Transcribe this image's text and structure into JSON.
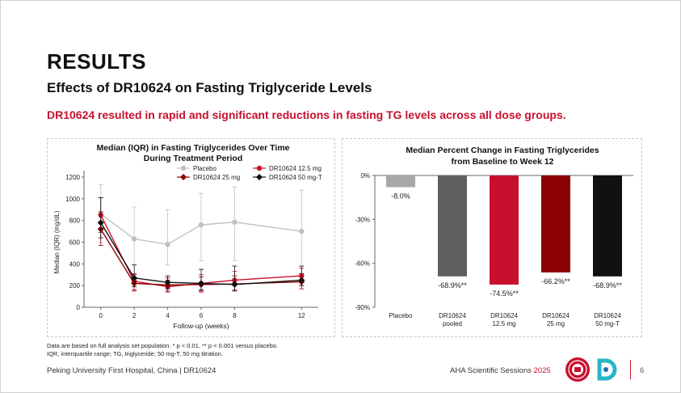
{
  "slide": {
    "title": "RESULTS",
    "subtitle": "Effects of DR10624 on Fasting Triglyceride Levels",
    "highlight": "DR10624 resulted in rapid and significant reductions in fasting TG levels across all dose groups.",
    "footnote_line1": "Data are based on full analysis set population. * p < 0.01, ** p < 0.001 versus placebo.",
    "footnote_line2": "IQR, interquartile range; TG, triglyceride; 50 mg-T, 50 mg titration.",
    "footer_left": "Peking University First Hospital, China | DR10624",
    "footer_right_text": "AHA Scientific Sessions ",
    "footer_right_year": "2025",
    "page_number": "6",
    "colors": {
      "accent": "#c8102e"
    }
  },
  "chart_data": [
    {
      "type": "line",
      "title_line1": "Median (IQR) in Fasting Triglycerides Over Time",
      "title_line2": "During Treatment Period",
      "xlabel": "Follow-up (weeks)",
      "ylabel": "Median (IQR) (mg/dL)",
      "ylim": [
        0,
        1200
      ],
      "yticks": [
        0,
        200,
        400,
        600,
        800,
        1000,
        1200
      ],
      "x": [
        0,
        2,
        4,
        6,
        8,
        12
      ],
      "xlim": [
        -1,
        13
      ],
      "legend_position": "top",
      "grid": false,
      "series": [
        {
          "name": "Placebo",
          "color": "#c0c0c0",
          "marker": "circle",
          "values": [
            860,
            630,
            580,
            760,
            785,
            700
          ],
          "lower": [
            600,
            390,
            390,
            430,
            430,
            280
          ],
          "upper": [
            1130,
            925,
            900,
            1050,
            1110,
            1080
          ]
        },
        {
          "name": "DR10624 12.5 mg",
          "color": "#c8102e",
          "marker": "circle",
          "values": [
            850,
            240,
            190,
            220,
            250,
            290
          ],
          "lower": [
            690,
            160,
            140,
            140,
            160,
            200
          ],
          "upper": [
            1010,
            310,
            250,
            300,
            330,
            360
          ]
        },
        {
          "name": "DR10624 25 mg",
          "color": "#8b0000",
          "marker": "diamond",
          "values": [
            720,
            220,
            205,
            210,
            215,
            235
          ],
          "lower": [
            570,
            150,
            150,
            150,
            150,
            170
          ],
          "upper": [
            880,
            300,
            270,
            280,
            290,
            310
          ]
        },
        {
          "name": "DR10624 50 mg-T",
          "color": "#111111",
          "marker": "diamond",
          "values": [
            780,
            270,
            230,
            220,
            210,
            250
          ],
          "lower": [
            640,
            190,
            170,
            160,
            150,
            200
          ],
          "upper": [
            1010,
            390,
            290,
            350,
            380,
            380
          ]
        }
      ]
    },
    {
      "type": "bar",
      "title_line1": "Median Percent Change in Fasting Triglycerides",
      "title_line2": "from Baseline to Week 12",
      "ylim": [
        -90,
        0
      ],
      "yticks": [
        "0%",
        "-30%",
        "-60%",
        "-90%"
      ],
      "ytick_values": [
        0,
        -30,
        -60,
        -90
      ],
      "categories": [
        [
          "Placebo"
        ],
        [
          "DR10624",
          "pooled"
        ],
        [
          "DR10624",
          "12.5 mg"
        ],
        [
          "DR10624",
          "25 mg"
        ],
        [
          "DR10624",
          "50 mg-T"
        ]
      ],
      "values": [
        -8.0,
        -68.9,
        -74.5,
        -66.2,
        -68.9
      ],
      "labels": [
        "-8.0%",
        "-68.9%**",
        "-74.5%**",
        "-66.2%**",
        "-68.9%**"
      ],
      "colors": [
        "#a8a8a8",
        "#5f5f5f",
        "#c8102e",
        "#8b0000",
        "#111111"
      ]
    }
  ]
}
